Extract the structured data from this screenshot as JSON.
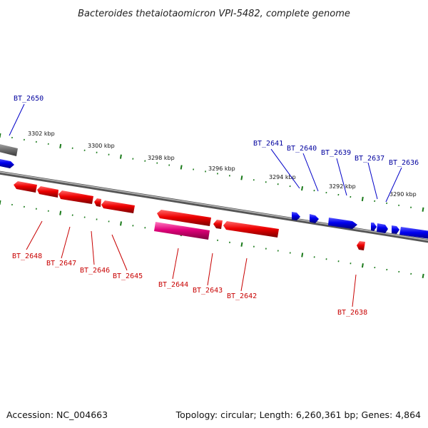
{
  "title": "Bacteroides thetaiotaomicron VPI-5482, complete genome",
  "footer": {
    "accession": "Accession: NC_004663",
    "summary": "Topology: circular; Length: 6,260,361 bp; Genes: 4,864"
  },
  "colors": {
    "backbone": "#6e6e6e",
    "forward_gene": "#0000ee",
    "reverse_gene": "#ee0000",
    "highlight_gene": "#e0007a",
    "tick": "#1a7a1a",
    "forward_label": "#00009e",
    "reverse_label": "#c80000"
  },
  "scale_labels": [
    "3302 kbp",
    "3300 kbp",
    "3298 kbp",
    "3296 kbp",
    "3294 kbp",
    "3292 kbp",
    "3290 kbp"
  ],
  "forward_genes": [
    "BT_2650",
    "BT_2641",
    "BT_2640",
    "BT_2639",
    "BT_2637",
    "BT_2636"
  ],
  "reverse_genes": [
    "BT_2648",
    "BT_2647",
    "BT_2646",
    "BT_2645",
    "BT_2644",
    "BT_2643",
    "BT_2642",
    "BT_2638"
  ]
}
